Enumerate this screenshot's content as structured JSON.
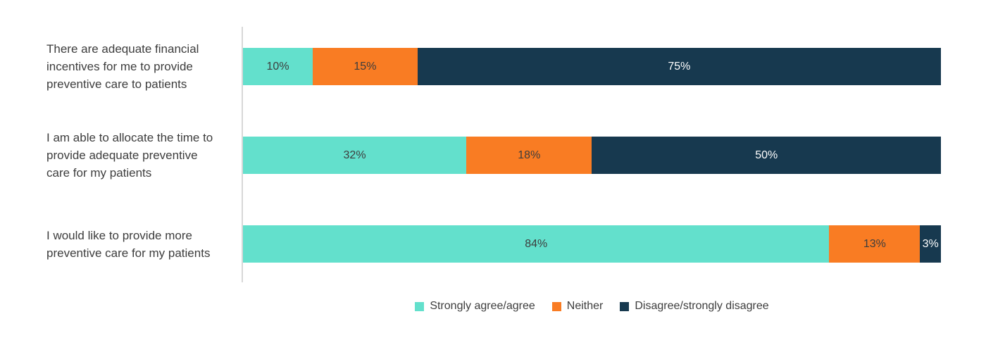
{
  "chart_data": {
    "type": "bar",
    "orientation": "horizontal",
    "stacked": true,
    "unit": "%",
    "xlim": [
      0,
      100
    ],
    "grid": false,
    "legend_position": "bottom-center",
    "categories": [
      "There are adequate financial incentives for me to provide preventive care to patients",
      "I am able to allocate the time to provide adequate preventive care for my patients",
      "I would like to provide more preventive care for my patients"
    ],
    "series": [
      {
        "name": "Strongly agree/agree",
        "color": "#63E0CC",
        "label_color": "#3D3D3D",
        "values": [
          10,
          32,
          84
        ],
        "labels": [
          "10%",
          "32%",
          "84%"
        ]
      },
      {
        "name": "Neither",
        "color": "#F97C23",
        "label_color": "#3D3D3D",
        "values": [
          15,
          18,
          13
        ],
        "labels": [
          "15%",
          "18%",
          "13%"
        ]
      },
      {
        "name": "Disagree/strongly disagree",
        "color": "#17394F",
        "label_color": "#FFFFFF",
        "values": [
          75,
          50,
          3
        ],
        "labels": [
          "75%",
          "50%",
          "3%"
        ]
      }
    ]
  },
  "display": {
    "category_labels": [
      "There are adequate financial\nincentives for me to provide\npreventive care to patients",
      "I am able to allocate the time to\nprovide adequate preventive\ncare for my patients",
      "I would like to provide more\npreventive care for my patients"
    ]
  },
  "colors": {
    "text": "#3D3D3D",
    "axis_line": "#D8D8D8",
    "background": "#FFFFFF"
  }
}
